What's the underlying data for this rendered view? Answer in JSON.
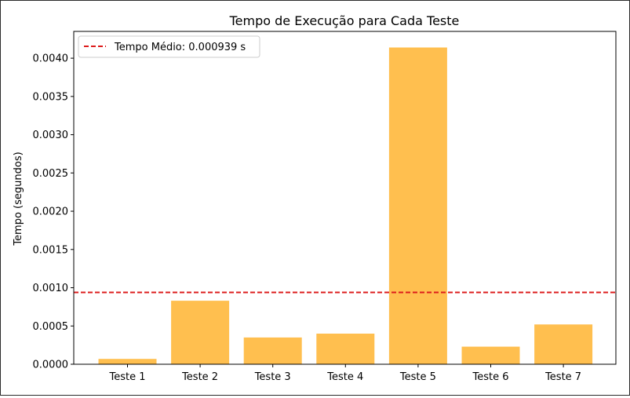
{
  "chart_data": {
    "type": "bar",
    "title": "Tempo de Execução para Cada Teste",
    "xlabel": "",
    "ylabel": "Tempo (segundos)",
    "categories": [
      "Teste 1",
      "Teste 2",
      "Teste 3",
      "Teste 4",
      "Teste 5",
      "Teste 6",
      "Teste 7"
    ],
    "values": [
      7e-05,
      0.00083,
      0.00035,
      0.0004,
      0.00414,
      0.00023,
      0.00052
    ],
    "bar_color": "#ffbf4f",
    "ylim": [
      0,
      0.00435
    ],
    "yticks": [
      "0.0000",
      "0.0005",
      "0.0010",
      "0.0015",
      "0.0020",
      "0.0025",
      "0.0030",
      "0.0035",
      "0.0040"
    ],
    "mean_line": {
      "value": 0.000939,
      "label": "Tempo Médio: 0.000939 s",
      "color": "#dd1c1c",
      "style": "dashed"
    },
    "legend": {
      "placement": "top-left"
    },
    "grid": false
  }
}
